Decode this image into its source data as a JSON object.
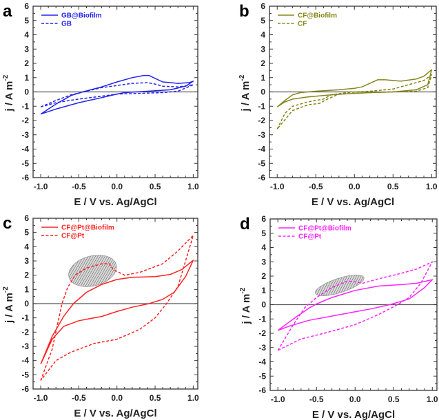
{
  "chart_data": [
    {
      "type": "line",
      "panel_label": "a",
      "xlabel": "E / V vs. Ag/AgCl",
      "ylabel": "j / A m",
      "ylabel_exponent": "-2",
      "xlim": [
        -1.1,
        1.06
      ],
      "ylim": [
        -6,
        6
      ],
      "xticks": [
        "-1.0",
        "-0.5",
        "0.0",
        "0.5",
        "1.0"
      ],
      "yticks": [
        "-6",
        "-5",
        "-4",
        "-3",
        "-2",
        "-1",
        "0",
        "1",
        "2",
        "3",
        "4",
        "5",
        "6"
      ],
      "grid": false,
      "legend_placement": "top-left",
      "color": "#2222ee",
      "series": [
        {
          "name": "GB@Biofilm",
          "style": "solid",
          "points": [
            [
              -1,
              -1.55
            ],
            [
              -0.8,
              -0.85
            ],
            [
              -0.6,
              -0.25
            ],
            [
              -0.45,
              0
            ],
            [
              -0.2,
              0.35
            ],
            [
              0,
              0.7
            ],
            [
              0.2,
              1.0
            ],
            [
              0.35,
              1.15
            ],
            [
              0.42,
              1.15
            ],
            [
              0.5,
              0.95
            ],
            [
              0.6,
              0.7
            ],
            [
              0.8,
              0.6
            ],
            [
              0.95,
              0.65
            ],
            [
              1,
              0.75
            ],
            [
              0.9,
              0.4
            ],
            [
              0.7,
              0.15
            ],
            [
              0.4,
              0.05
            ],
            [
              0.1,
              -0.05
            ],
            [
              0,
              -0.15
            ],
            [
              -0.2,
              -0.4
            ],
            [
              -0.5,
              -0.75
            ],
            [
              -0.8,
              -1.2
            ],
            [
              -1,
              -1.55
            ]
          ]
        },
        {
          "name": "GB",
          "style": "dashed",
          "points": [
            [
              -1,
              -1.05
            ],
            [
              -0.8,
              -0.6
            ],
            [
              -0.6,
              -0.2
            ],
            [
              -0.4,
              0.05
            ],
            [
              -0.2,
              0.3
            ],
            [
              0,
              0.45
            ],
            [
              0.2,
              0.6
            ],
            [
              0.4,
              0.65
            ],
            [
              0.5,
              0.55
            ],
            [
              0.6,
              0.4
            ],
            [
              0.8,
              0.35
            ],
            [
              1,
              0.5
            ],
            [
              0.8,
              0.05
            ],
            [
              0.6,
              -0.05
            ],
            [
              0.3,
              -0.1
            ],
            [
              0,
              -0.15
            ],
            [
              -0.2,
              -0.3
            ],
            [
              -0.5,
              -0.5
            ],
            [
              -0.8,
              -0.75
            ],
            [
              -1,
              -1.05
            ]
          ]
        }
      ]
    },
    {
      "type": "line",
      "panel_label": "b",
      "xlabel": "E / V vs. Ag/AgCl",
      "ylabel": "j / A m",
      "ylabel_exponent": "-2",
      "xlim": [
        -1.1,
        1.06
      ],
      "ylim": [
        -6,
        6
      ],
      "xticks": [
        "-1.0",
        "-0.5",
        "0.0",
        "0.5",
        "1.0"
      ],
      "yticks": [
        "-6",
        "-5",
        "-4",
        "-3",
        "-2",
        "-1",
        "0",
        "1",
        "2",
        "3",
        "4",
        "5",
        "6"
      ],
      "grid": false,
      "legend_placement": "top-left",
      "color": "#85851a",
      "series": [
        {
          "name": "CF@Biofilm",
          "style": "solid",
          "points": [
            [
              -1,
              -1.05
            ],
            [
              -0.9,
              -0.6
            ],
            [
              -0.8,
              -0.2
            ],
            [
              -0.7,
              -0.05
            ],
            [
              -0.5,
              0.05
            ],
            [
              -0.2,
              0.15
            ],
            [
              0,
              0.25
            ],
            [
              0.1,
              0.35
            ],
            [
              0.2,
              0.6
            ],
            [
              0.3,
              0.85
            ],
            [
              0.4,
              0.85
            ],
            [
              0.5,
              0.8
            ],
            [
              0.6,
              0.75
            ],
            [
              0.8,
              0.9
            ],
            [
              0.9,
              1.1
            ],
            [
              1,
              1.55
            ],
            [
              0.95,
              0.5
            ],
            [
              0.8,
              0.15
            ],
            [
              0.5,
              0
            ],
            [
              0.2,
              -0.05
            ],
            [
              0,
              -0.1
            ],
            [
              -0.3,
              -0.2
            ],
            [
              -0.6,
              -0.35
            ],
            [
              -0.8,
              -0.5
            ],
            [
              -0.9,
              -0.7
            ],
            [
              -1,
              -1.05
            ]
          ]
        },
        {
          "name": "CF",
          "style": "dashed",
          "points": [
            [
              -1,
              -2.6
            ],
            [
              -0.9,
              -1.5
            ],
            [
              -0.8,
              -1.0
            ],
            [
              -0.6,
              -0.7
            ],
            [
              -0.4,
              -0.5
            ],
            [
              -0.3,
              -0.2
            ],
            [
              -0.1,
              -0.05
            ],
            [
              0.2,
              0.05
            ],
            [
              0.5,
              0.2
            ],
            [
              0.7,
              0.5
            ],
            [
              0.9,
              0.8
            ],
            [
              1,
              1.2
            ],
            [
              0.95,
              0.3
            ],
            [
              0.8,
              0.05
            ],
            [
              0.5,
              0
            ],
            [
              0.2,
              -0.05
            ],
            [
              -0.2,
              -0.15
            ],
            [
              -0.35,
              -0.5
            ],
            [
              -0.45,
              -0.8
            ],
            [
              -0.6,
              -0.9
            ],
            [
              -0.8,
              -1.3
            ],
            [
              -1,
              -2.6
            ]
          ]
        }
      ]
    },
    {
      "type": "line",
      "panel_label": "c",
      "xlabel": "E / V vs. Ag/AgCl",
      "ylabel": "j / A m",
      "ylabel_exponent": "-2",
      "xlim": [
        -1.1,
        1.06
      ],
      "ylim": [
        -6,
        6
      ],
      "xticks": [
        "-1.0",
        "-0.5",
        "0.0",
        "0.5",
        "1.0"
      ],
      "yticks": [
        "-6",
        "-5",
        "-4",
        "-3",
        "-2",
        "-1",
        "0",
        "1",
        "2",
        "3",
        "4",
        "5",
        "6"
      ],
      "grid": false,
      "legend_placement": "top-left",
      "color": "#ff2222",
      "highlight_ellipse": {
        "center": [
          -0.32,
          2.3
        ],
        "radii": [
          0.32,
          1.05
        ],
        "rotation_deg": -15
      },
      "series": [
        {
          "name": "CF@Pt@Biofilm",
          "style": "solid",
          "points": [
            [
              -1,
              -4.25
            ],
            [
              -0.85,
              -2.3
            ],
            [
              -0.7,
              -0.9
            ],
            [
              -0.57,
              0
            ],
            [
              -0.4,
              0.8
            ],
            [
              -0.2,
              1.35
            ],
            [
              0,
              1.7
            ],
            [
              0.2,
              1.85
            ],
            [
              0.5,
              1.9
            ],
            [
              0.7,
              2.05
            ],
            [
              0.85,
              2.4
            ],
            [
              1,
              3.05
            ],
            [
              0.9,
              1.9
            ],
            [
              0.75,
              0.8
            ],
            [
              0.6,
              0.3
            ],
            [
              0.42,
              0
            ],
            [
              0.2,
              -0.25
            ],
            [
              0,
              -0.55
            ],
            [
              -0.2,
              -0.9
            ],
            [
              -0.5,
              -1.2
            ],
            [
              -0.7,
              -1.6
            ],
            [
              -0.85,
              -2.5
            ],
            [
              -1,
              -4.25
            ]
          ]
        },
        {
          "name": "CF@Pt",
          "style": "dashed",
          "points": [
            [
              -1,
              -5.4
            ],
            [
              -0.85,
              -3.2
            ],
            [
              -0.72,
              0
            ],
            [
              -0.65,
              1.1
            ],
            [
              -0.55,
              2.0
            ],
            [
              -0.4,
              2.5
            ],
            [
              -0.2,
              2.8
            ],
            [
              -0.1,
              2.8
            ],
            [
              -0.05,
              2.4
            ],
            [
              0.1,
              2.0
            ],
            [
              0.3,
              2.2
            ],
            [
              0.6,
              2.8
            ],
            [
              0.8,
              3.7
            ],
            [
              1,
              4.8
            ],
            [
              0.9,
              3.0
            ],
            [
              0.8,
              1.2
            ],
            [
              0.65,
              0
            ],
            [
              0.5,
              -1.0
            ],
            [
              0.3,
              -1.8
            ],
            [
              0,
              -2.5
            ],
            [
              -0.3,
              -2.8
            ],
            [
              -0.6,
              -3.4
            ],
            [
              -0.8,
              -4.0
            ],
            [
              -1,
              -5.4
            ]
          ]
        }
      ]
    },
    {
      "type": "line",
      "panel_label": "d",
      "xlabel": "E / V vs. Ag/AgCl",
      "ylabel": "j / A m",
      "ylabel_exponent": "-2",
      "xlim": [
        -1.1,
        1.06
      ],
      "ylim": [
        -6,
        6
      ],
      "xticks": [
        "-1.0",
        "-0.5",
        "0.0",
        "0.5",
        "1.0"
      ],
      "yticks": [
        "-6",
        "-5",
        "-4",
        "-3",
        "-2",
        "-1",
        "0",
        "1",
        "2",
        "3",
        "4",
        "5",
        "6"
      ],
      "grid": false,
      "legend_placement": "top-left",
      "color": "#ff22ff",
      "highlight_ellipse": {
        "center": [
          -0.2,
          1.35
        ],
        "radii": [
          0.33,
          0.5
        ],
        "rotation_deg": -18
      },
      "series": [
        {
          "name": "CF@Pt@Biofilm",
          "style": "solid",
          "points": [
            [
              -1,
              -1.8
            ],
            [
              -0.8,
              -1.0
            ],
            [
              -0.6,
              -0.25
            ],
            [
              -0.5,
              0.05
            ],
            [
              -0.3,
              0.5
            ],
            [
              0,
              1.0
            ],
            [
              0.3,
              1.3
            ],
            [
              0.6,
              1.4
            ],
            [
              0.8,
              1.5
            ],
            [
              1,
              1.75
            ],
            [
              0.9,
              1.2
            ],
            [
              0.7,
              0.4
            ],
            [
              0.45,
              0
            ],
            [
              0.2,
              -0.3
            ],
            [
              -0.2,
              -0.7
            ],
            [
              -0.6,
              -1.1
            ],
            [
              -0.85,
              -1.5
            ],
            [
              -1,
              -1.8
            ]
          ]
        },
        {
          "name": "CF@Pt",
          "style": "dashed",
          "points": [
            [
              -1,
              -3.2
            ],
            [
              -0.8,
              -1.4
            ],
            [
              -0.65,
              -0.2
            ],
            [
              -0.5,
              0.5
            ],
            [
              -0.3,
              1.2
            ],
            [
              -0.1,
              1.65
            ],
            [
              0,
              1.6
            ],
            [
              0.1,
              1.5
            ],
            [
              0.3,
              1.8
            ],
            [
              0.6,
              2.2
            ],
            [
              0.8,
              2.5
            ],
            [
              1,
              3.0
            ],
            [
              0.85,
              1.5
            ],
            [
              0.7,
              0.5
            ],
            [
              0.55,
              0
            ],
            [
              0.3,
              -0.7
            ],
            [
              0,
              -1.4
            ],
            [
              -0.4,
              -2.0
            ],
            [
              -0.7,
              -2.4
            ],
            [
              -1,
              -3.2
            ]
          ]
        }
      ]
    }
  ]
}
